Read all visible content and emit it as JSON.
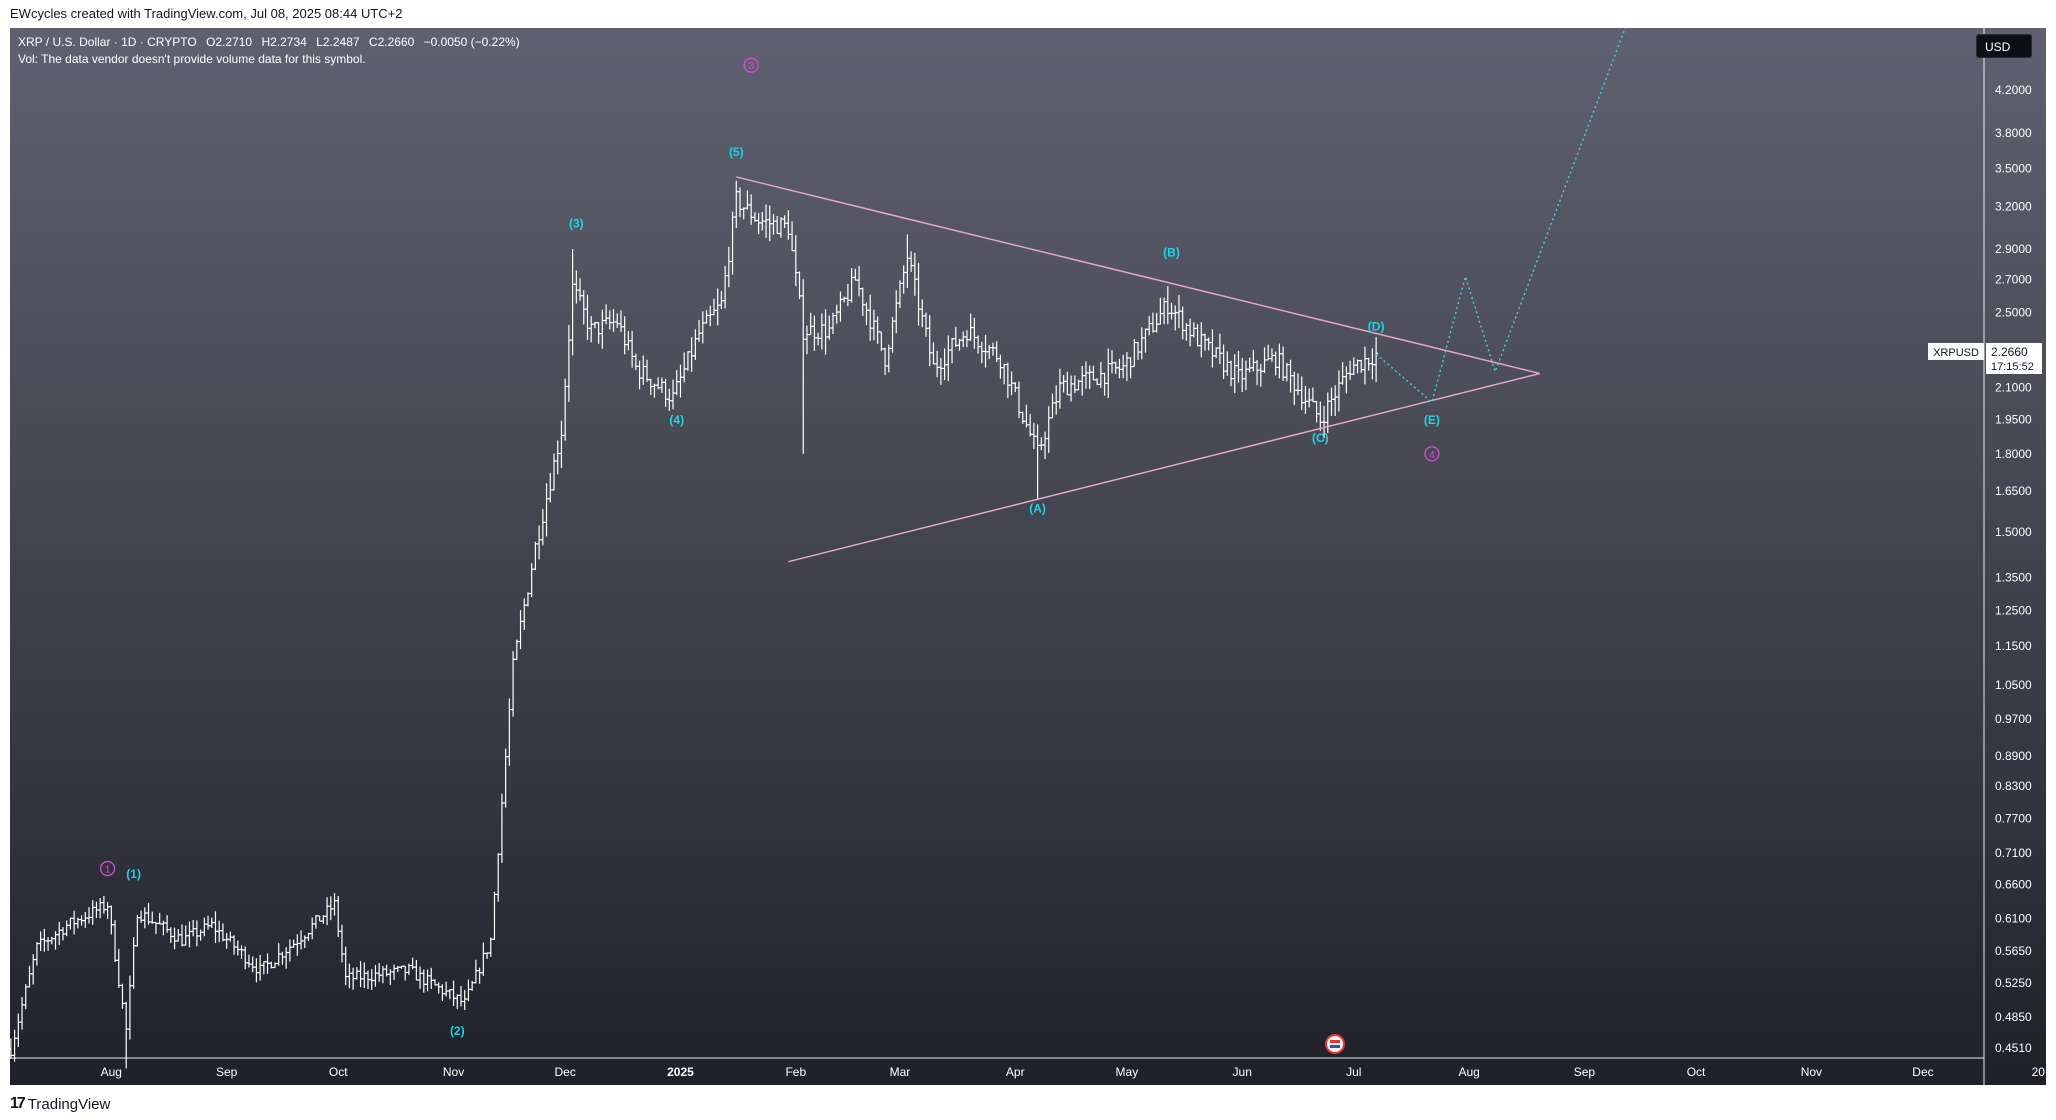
{
  "header": {
    "attribution": "EWcycles created with TradingView.com, Jul 08, 2025 08:44 UTC+2"
  },
  "legend": {
    "symbol_line": "XRP / U.S. Dollar · 1D · CRYPTO",
    "open": "O2.2710",
    "high": "H2.2734",
    "low": "L2.2487",
    "close": "C2.2660",
    "change": "−0.0050 (−0.22%)",
    "volume_note": "Vol: The data vendor doesn't provide volume data for this symbol."
  },
  "currency_button": "USD",
  "price_label": {
    "symbol": "XRPUSD",
    "price": "2.2660",
    "countdown": "17:15:52"
  },
  "footer": {
    "brand": "TradingView"
  },
  "colors": {
    "background_top": "#5f6170",
    "background_bottom": "#1f2129",
    "candles": "#ffffff",
    "triangle": "#e3a6c6",
    "wave_label_minor": "#20d4e6",
    "wave_label_major": "#d14fd0",
    "projection": "#4fd1d9"
  },
  "chart_data": {
    "type": "ohlc-bar",
    "title": "XRP / U.S. Dollar · 1D · CRYPTO",
    "y_scale": "log",
    "ylim": [
      0.451,
      4.6
    ],
    "y_ticks": [
      "4.2000",
      "3.8000",
      "3.5000",
      "3.2000",
      "2.9000",
      "2.7000",
      "2.5000",
      "2.1000",
      "1.9500",
      "1.8000",
      "1.6500",
      "1.5000",
      "1.3500",
      "1.2500",
      "1.1500",
      "1.0500",
      "0.9700",
      "0.8900",
      "0.8300",
      "0.7700",
      "0.7100",
      "0.6600",
      "0.6100",
      "0.5650",
      "0.5250",
      "0.4850",
      "0.4510"
    ],
    "x_ticks": [
      "Aug",
      "Sep",
      "Oct",
      "Nov",
      "Dec",
      "2025",
      "Feb",
      "Mar",
      "Apr",
      "May",
      "Jun",
      "Jul",
      "Aug",
      "Sep",
      "Oct",
      "Nov",
      "Dec",
      "20"
    ],
    "price_path": [
      {
        "date": "2024-07-05",
        "price": 0.45
      },
      {
        "date": "2024-07-12",
        "price": 0.57
      },
      {
        "date": "2024-07-20",
        "price": 0.6
      },
      {
        "date": "2024-07-31",
        "price": 0.63
      },
      {
        "date": "2024-08-05",
        "price": 0.47
      },
      {
        "date": "2024-08-08",
        "price": 0.62
      },
      {
        "date": "2024-08-20",
        "price": 0.58
      },
      {
        "date": "2024-08-28",
        "price": 0.6
      },
      {
        "date": "2024-09-10",
        "price": 0.54
      },
      {
        "date": "2024-09-20",
        "price": 0.58
      },
      {
        "date": "2024-09-30",
        "price": 0.63
      },
      {
        "date": "2024-10-03",
        "price": 0.53
      },
      {
        "date": "2024-10-20",
        "price": 0.54
      },
      {
        "date": "2024-11-04",
        "price": 0.5
      },
      {
        "date": "2024-11-11",
        "price": 0.58
      },
      {
        "date": "2024-11-17",
        "price": 1.1
      },
      {
        "date": "2024-11-23",
        "price": 1.45
      },
      {
        "date": "2024-11-30",
        "price": 1.9
      },
      {
        "date": "2024-12-03",
        "price": 2.65
      },
      {
        "date": "2024-12-08",
        "price": 2.4
      },
      {
        "date": "2024-12-15",
        "price": 2.45
      },
      {
        "date": "2024-12-20",
        "price": 2.2
      },
      {
        "date": "2024-12-30",
        "price": 2.05
      },
      {
        "date": "2025-01-06",
        "price": 2.38
      },
      {
        "date": "2025-01-12",
        "price": 2.55
      },
      {
        "date": "2025-01-16",
        "price": 3.25
      },
      {
        "date": "2025-01-22",
        "price": 3.1
      },
      {
        "date": "2025-01-30",
        "price": 3.05
      },
      {
        "date": "2025-02-03",
        "price": 2.4
      },
      {
        "date": "2025-02-10",
        "price": 2.4
      },
      {
        "date": "2025-02-17",
        "price": 2.7
      },
      {
        "date": "2025-02-25",
        "price": 2.25
      },
      {
        "date": "2025-03-03",
        "price": 2.85
      },
      {
        "date": "2025-03-10",
        "price": 2.2
      },
      {
        "date": "2025-03-19",
        "price": 2.4
      },
      {
        "date": "2025-03-28",
        "price": 2.25
      },
      {
        "date": "2025-04-07",
        "price": 1.8
      },
      {
        "date": "2025-04-13",
        "price": 2.1
      },
      {
        "date": "2025-04-22",
        "price": 2.15
      },
      {
        "date": "2025-04-30",
        "price": 2.2
      },
      {
        "date": "2025-05-12",
        "price": 2.55
      },
      {
        "date": "2025-05-20",
        "price": 2.35
      },
      {
        "date": "2025-05-31",
        "price": 2.15
      },
      {
        "date": "2025-06-10",
        "price": 2.25
      },
      {
        "date": "2025-06-22",
        "price": 1.95
      },
      {
        "date": "2025-06-30",
        "price": 2.2
      },
      {
        "date": "2025-07-07",
        "price": 2.27
      }
    ],
    "ohlc_last": {
      "open": 2.271,
      "high": 2.2734,
      "low": 2.2487,
      "close": 2.266
    },
    "wave_labels_minor": [
      {
        "label": "(1)",
        "date": "2024-08-07",
        "price": 0.67
      },
      {
        "label": "(2)",
        "date": "2024-11-02",
        "price": 0.465
      },
      {
        "label": "(3)",
        "date": "2024-12-04",
        "price": 3.05
      },
      {
        "label": "(4)",
        "date": "2024-12-31",
        "price": 1.93
      },
      {
        "label": "(5)",
        "date": "2025-01-16",
        "price": 3.6
      },
      {
        "label": "(A)",
        "date": "2025-04-07",
        "price": 1.57
      },
      {
        "label": "(B)",
        "date": "2025-05-13",
        "price": 2.85
      },
      {
        "label": "(C)",
        "date": "2025-06-22",
        "price": 1.85
      },
      {
        "label": "(D)",
        "date": "2025-07-07",
        "price": 2.4
      },
      {
        "label": "(E)",
        "date": "2025-07-22",
        "price": 1.93
      }
    ],
    "wave_labels_major": [
      {
        "label": "1",
        "date": "2024-07-31",
        "price": 0.685
      },
      {
        "label": "3",
        "date": "2025-01-20",
        "price": 4.45
      },
      {
        "label": "4",
        "date": "2025-07-22",
        "price": 1.8
      }
    ],
    "triangle": {
      "upper": [
        {
          "date": "2025-01-16",
          "price": 3.43
        },
        {
          "date": "2025-08-20",
          "price": 2.17
        }
      ],
      "lower": [
        {
          "date": "2025-01-30",
          "price": 1.4
        },
        {
          "date": "2025-08-20",
          "price": 2.17
        }
      ]
    },
    "projection": [
      {
        "date": "2025-07-07",
        "price": 2.27
      },
      {
        "date": "2025-07-22",
        "price": 2.03
      },
      {
        "date": "2025-07-31",
        "price": 2.72
      },
      {
        "date": "2025-08-08",
        "price": 2.18
      },
      {
        "date": "2025-09-15",
        "price": 5.2
      }
    ],
    "grid": false,
    "legend_position": "top-left"
  }
}
